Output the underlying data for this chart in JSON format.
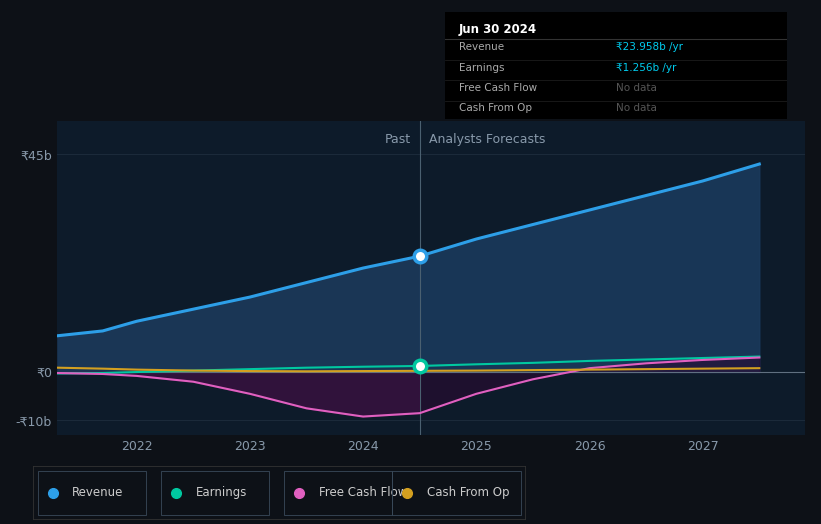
{
  "bg_color": "#0d1117",
  "plot_bg_color": "#0d1b2a",
  "ylim": [
    -13,
    52
  ],
  "xlim": [
    2021.3,
    2027.9
  ],
  "y_ticks": [
    -10,
    0,
    45
  ],
  "y_tick_labels": [
    "-₹10b",
    "₹0",
    "₹45b"
  ],
  "x_ticks": [
    2022,
    2023,
    2024,
    2025,
    2026,
    2027
  ],
  "divider_x": 2024.5,
  "past_label": "Past",
  "forecast_label": "Analysts Forecasts",
  "revenue_color": "#2d9fe8",
  "earnings_color": "#00c8a0",
  "fcf_color": "#e060c0",
  "cashop_color": "#d4a020",
  "revenue_fill_past": "#1a3655",
  "revenue_fill_future": "#1a3a5c",
  "fcf_fill_past": "#3a1040",
  "fcf_fill_future": "#2a0a32",
  "tooltip_title": "Jun 30 2024",
  "tooltip_revenue_label": "Revenue",
  "tooltip_revenue_val": "₹23.958b /yr",
  "tooltip_earnings_label": "Earnings",
  "tooltip_earnings_val": "₹1.256b /yr",
  "tooltip_fcf_label": "Free Cash Flow",
  "tooltip_fcf_val": "No data",
  "tooltip_cashop_label": "Cash From Op",
  "tooltip_cashop_val": "No data",
  "legend_items": [
    "Revenue",
    "Earnings",
    "Free Cash Flow",
    "Cash From Op"
  ],
  "revenue_past_x": [
    2021.3,
    2021.7,
    2022.0,
    2022.5,
    2023.0,
    2023.5,
    2024.0,
    2024.5
  ],
  "revenue_past_y": [
    7.5,
    8.5,
    10.5,
    13.0,
    15.5,
    18.5,
    21.5,
    23.958
  ],
  "revenue_future_x": [
    2024.5,
    2025.0,
    2025.5,
    2026.0,
    2026.5,
    2027.0,
    2027.5
  ],
  "revenue_future_y": [
    23.958,
    27.5,
    30.5,
    33.5,
    36.5,
    39.5,
    43.0
  ],
  "earnings_past_x": [
    2021.3,
    2021.7,
    2022.0,
    2022.5,
    2023.0,
    2023.5,
    2024.0,
    2024.5
  ],
  "earnings_past_y": [
    -0.3,
    -0.2,
    0.0,
    0.3,
    0.6,
    0.9,
    1.1,
    1.256
  ],
  "earnings_future_x": [
    2024.5,
    2025.0,
    2025.5,
    2026.0,
    2026.5,
    2027.0,
    2027.5
  ],
  "earnings_future_y": [
    1.256,
    1.6,
    1.9,
    2.3,
    2.6,
    2.9,
    3.2
  ],
  "fcf_past_x": [
    2021.3,
    2021.7,
    2022.0,
    2022.5,
    2023.0,
    2023.5,
    2024.0,
    2024.5
  ],
  "fcf_past_y": [
    -0.2,
    -0.4,
    -0.8,
    -2.0,
    -4.5,
    -7.5,
    -9.2,
    -8.5
  ],
  "fcf_future_x": [
    2024.5,
    2025.0,
    2025.5,
    2026.0,
    2026.5,
    2027.0,
    2027.5
  ],
  "fcf_future_y": [
    -8.5,
    -4.5,
    -1.5,
    0.8,
    1.8,
    2.5,
    3.0
  ],
  "cashop_past_x": [
    2021.3,
    2021.7,
    2022.0,
    2022.5,
    2023.0,
    2023.5,
    2024.0,
    2024.5
  ],
  "cashop_past_y": [
    0.9,
    0.7,
    0.5,
    0.3,
    0.2,
    0.15,
    0.2,
    0.25
  ],
  "cashop_future_x": [
    2024.5,
    2025.0,
    2025.5,
    2026.0,
    2026.5,
    2027.0,
    2027.5
  ],
  "cashop_future_y": [
    0.25,
    0.3,
    0.4,
    0.5,
    0.6,
    0.7,
    0.8
  ]
}
